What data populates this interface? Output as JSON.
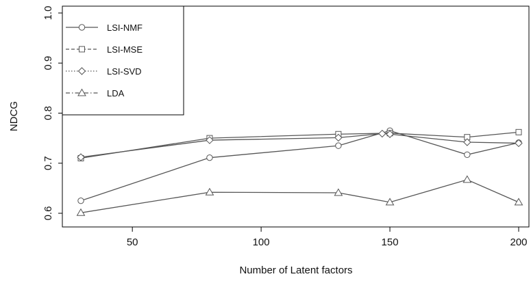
{
  "chart_data": {
    "type": "line",
    "title": "",
    "xlabel": "Number of Latent factors",
    "ylabel": "NDCG",
    "xlim": [
      20,
      205
    ],
    "ylim": [
      0.575,
      1.0
    ],
    "xticks": [
      50,
      100,
      150,
      200
    ],
    "xtick_labels": [
      "50",
      "100",
      "150",
      "200"
    ],
    "yticks": [
      0.6,
      0.7,
      0.8,
      0.9,
      1.0
    ],
    "ytick_labels": [
      "0.6",
      "0.7",
      "0.8",
      "0.9",
      "1.0"
    ],
    "grid": false,
    "legend_position": "top-left",
    "line_color": "#555555",
    "series": [
      {
        "name": "LSI-NMF",
        "marker": "circle",
        "dash": "solid",
        "points": [
          [
            30,
            0.625
          ],
          [
            80,
            0.711
          ],
          [
            130,
            0.735
          ],
          [
            150,
            0.765
          ],
          [
            180,
            0.717
          ],
          [
            200,
            0.741
          ]
        ]
      },
      {
        "name": "LSI-MSE",
        "marker": "square",
        "dash": "dashed",
        "points": [
          [
            30,
            0.71
          ],
          [
            80,
            0.75
          ],
          [
            130,
            0.758
          ],
          [
            150,
            0.76
          ],
          [
            180,
            0.752
          ],
          [
            200,
            0.762
          ]
        ]
      },
      {
        "name": "LSI-SVD",
        "marker": "diamond",
        "dash": "dotted",
        "points": [
          [
            30,
            0.712
          ],
          [
            80,
            0.746
          ],
          [
            130,
            0.751
          ],
          [
            147,
            0.759
          ],
          [
            150,
            0.758
          ],
          [
            180,
            0.742
          ],
          [
            200,
            0.74
          ]
        ]
      },
      {
        "name": "LDA",
        "marker": "triangle",
        "dash": "dashdot",
        "points": [
          [
            30,
            0.601
          ],
          [
            80,
            0.642
          ],
          [
            130,
            0.641
          ],
          [
            150,
            0.622
          ],
          [
            180,
            0.667
          ],
          [
            200,
            0.622
          ]
        ]
      }
    ]
  }
}
